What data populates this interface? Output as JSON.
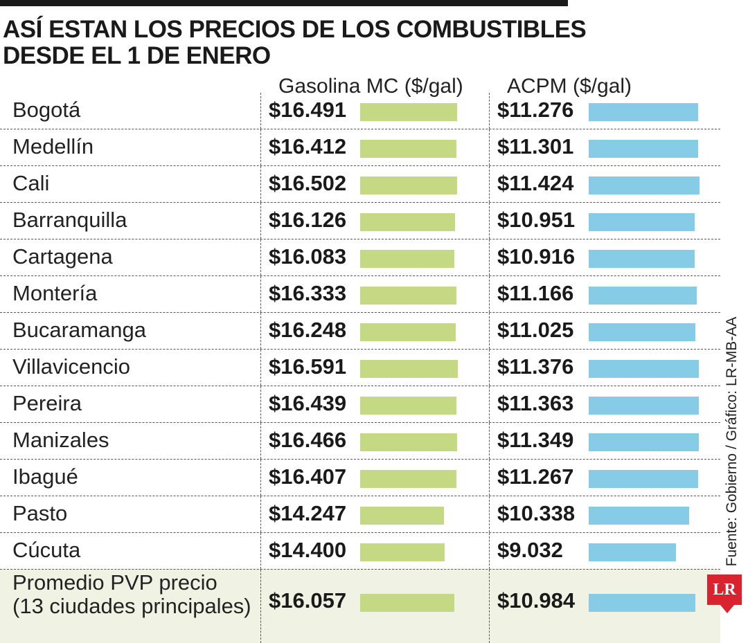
{
  "header": {
    "title_line1": "ASÍ ESTAN LOS PRECIOS DE LOS COMBUSTIBLES",
    "title_line2": "DESDE EL 1 DE ENERO",
    "col_gasolina": "Gasolina MC ($/gal)",
    "col_acpm": "ACPM ($/gal)"
  },
  "chart_data": {
    "type": "bar",
    "categories": [
      "Bogotá",
      "Medellín",
      "Cali",
      "Barranquilla",
      "Cartagena",
      "Montería",
      "Bucaramanga",
      "Villavicencio",
      "Pereira",
      "Manizales",
      "Ibagué",
      "Pasto",
      "Cúcuta"
    ],
    "series": [
      {
        "name": "Gasolina MC ($/gal)",
        "values": [
          16491,
          16412,
          16502,
          16126,
          16083,
          16333,
          16248,
          16591,
          16439,
          16466,
          16407,
          14247,
          14400
        ],
        "labels": [
          "$16.491",
          "$16.412",
          "$16.502",
          "$16.126",
          "$16.083",
          "$16.333",
          "$16.248",
          "$16.591",
          "$16.439",
          "$16.466",
          "$16.407",
          "$14.247",
          "$14.400"
        ],
        "color": "#c5d985"
      },
      {
        "name": "ACPM ($/gal)",
        "values": [
          11276,
          11301,
          11424,
          10951,
          10916,
          11166,
          11025,
          11376,
          11363,
          11349,
          11267,
          10338,
          9032
        ],
        "labels": [
          "$11.276",
          "$11.301",
          "$11.424",
          "$10.951",
          "$10.916",
          "$11.166",
          "$11.025",
          "$11.376",
          "$11.363",
          "$11.349",
          "$11.267",
          "$10.338",
          "$9.032"
        ],
        "color": "#87cce6"
      }
    ],
    "average": {
      "label_line1": "Promedio PVP precio",
      "label_line2": "(13 ciudades principales)",
      "gasolina": 16057,
      "gasolina_label": "$16.057",
      "acpm": 10984,
      "acpm_label": "$10.984"
    }
  },
  "footer": {
    "source": "Fuente: Gobierno / Gráfico: LR-MB-AA",
    "logo": "LR"
  }
}
